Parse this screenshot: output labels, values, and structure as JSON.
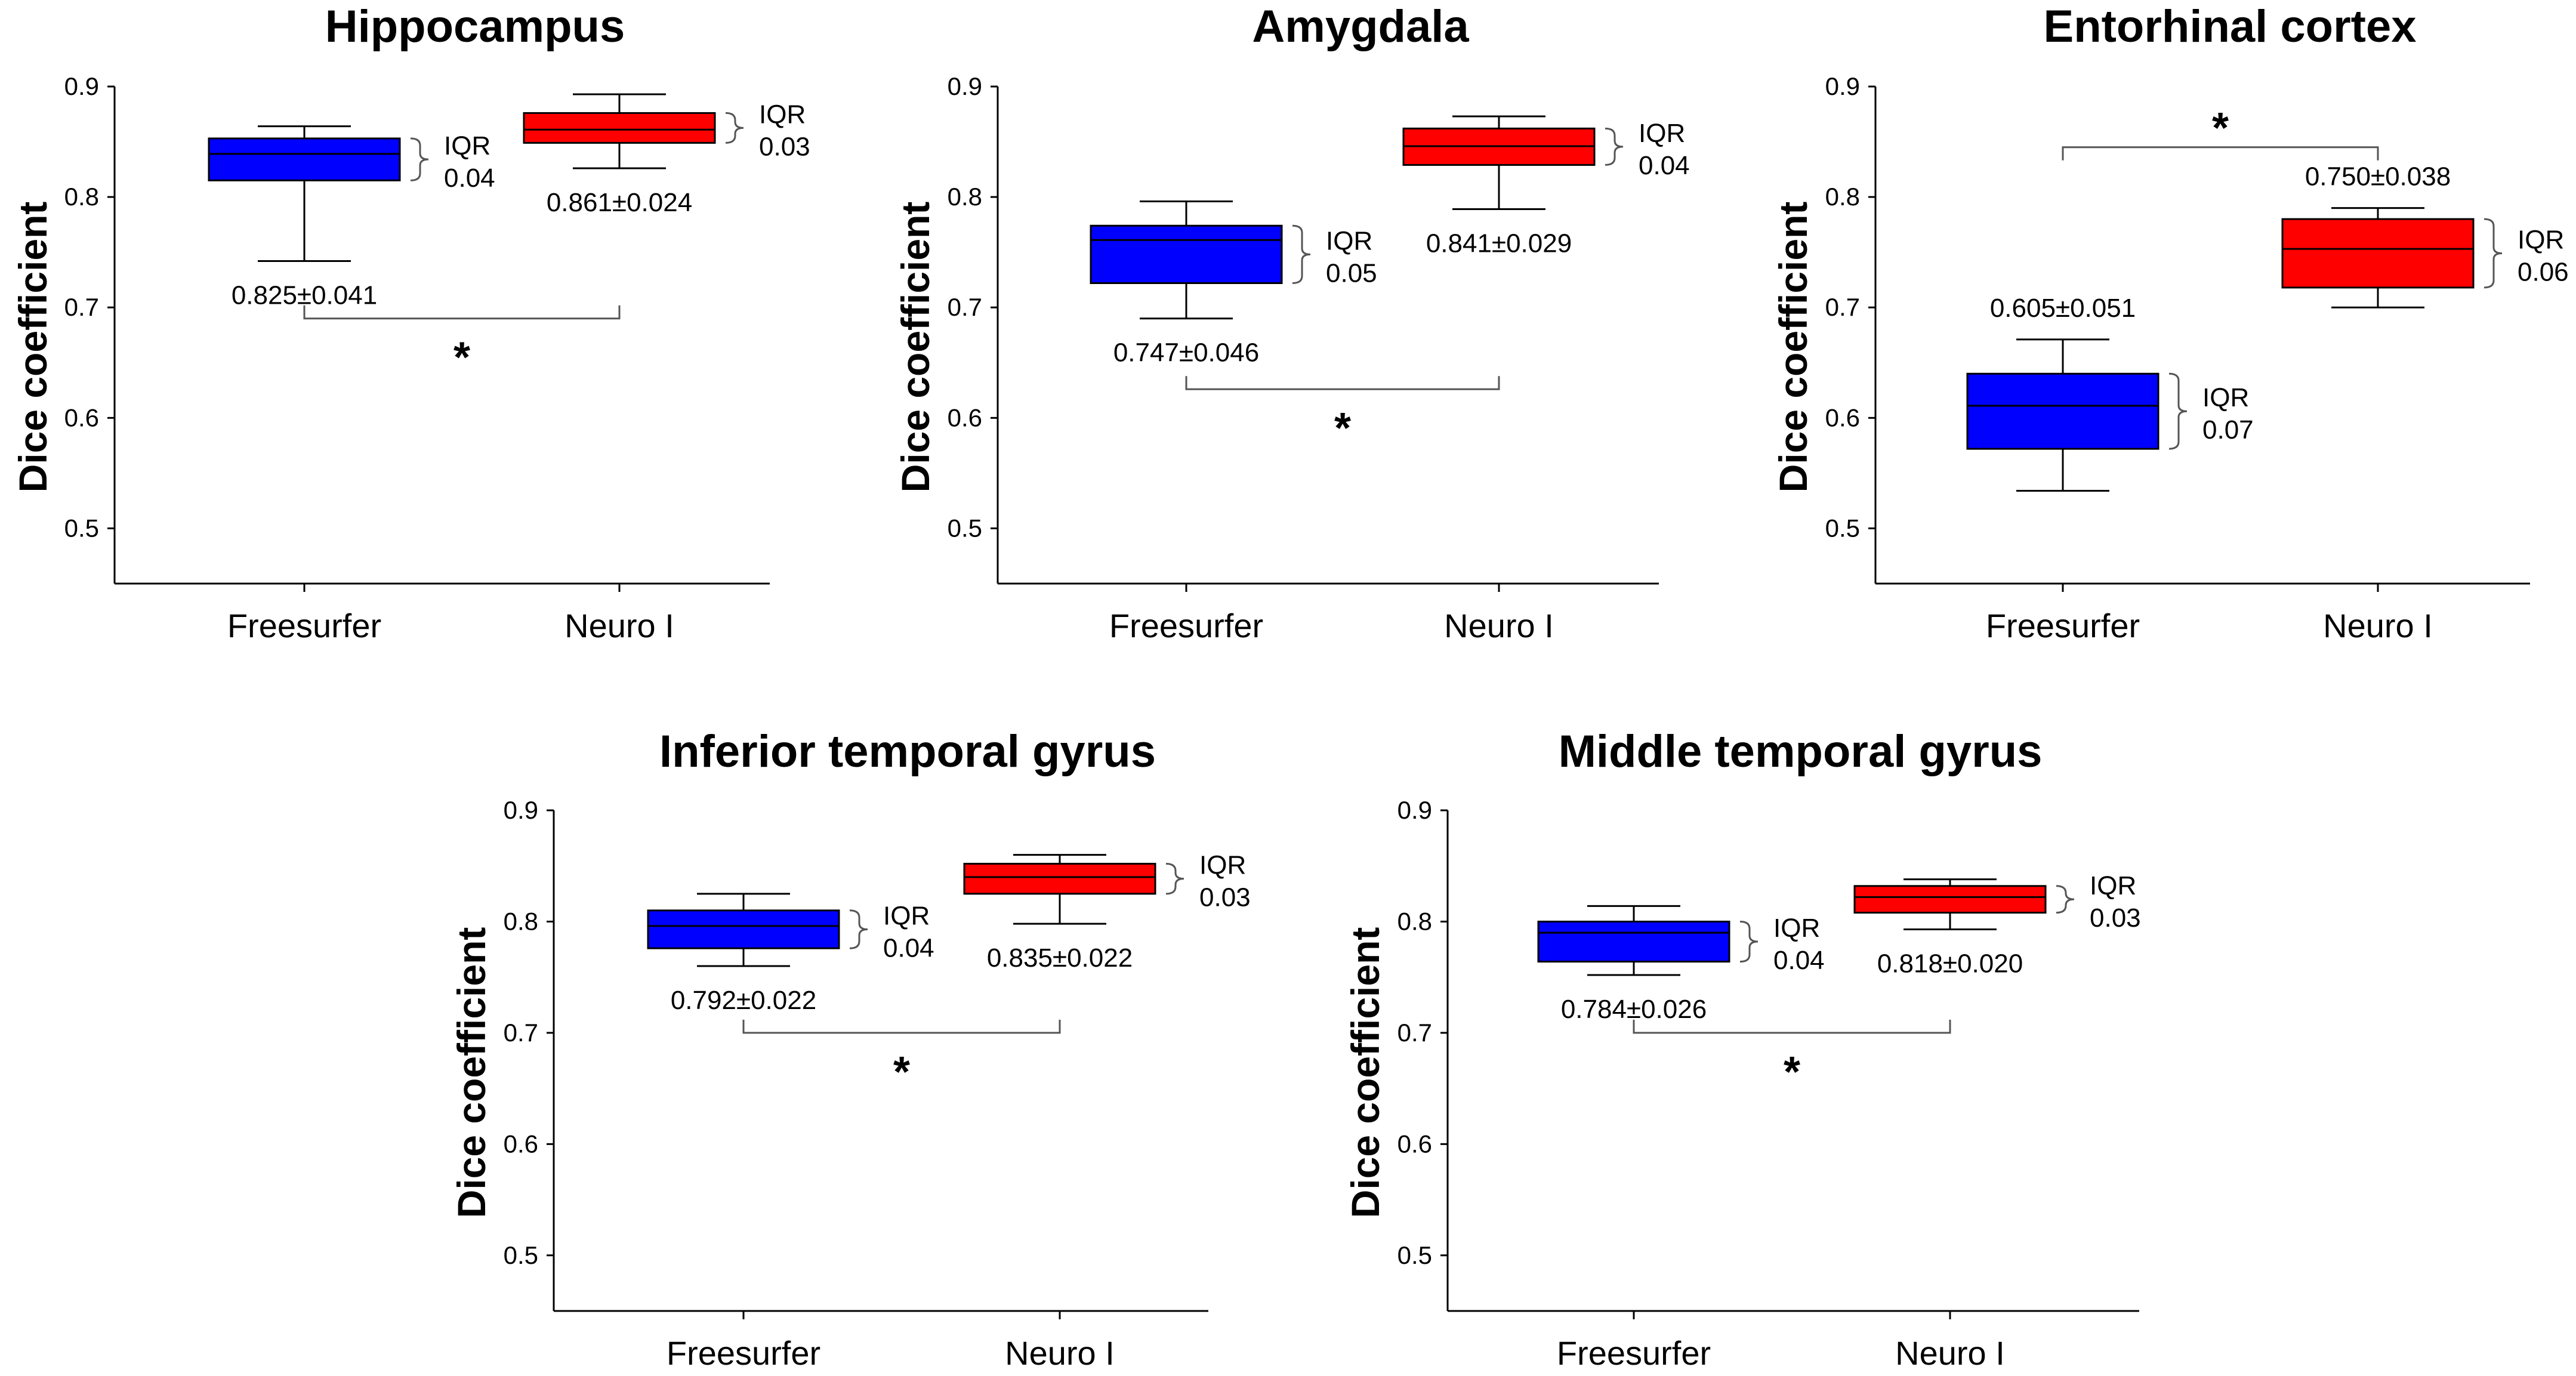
{
  "figure": {
    "ylabel": "Dice coefficient",
    "categories": [
      "Freesurfer",
      "Neuro I"
    ],
    "colors": {
      "Freesurfer": "#0000ff",
      "Neuro I": "#ff0000"
    },
    "significance_symbol": "*"
  },
  "chart_data": [
    {
      "type": "box",
      "title": "Hippocampus",
      "ylabel": "Dice coefficient",
      "categories": [
        "Freesurfer",
        "Neuro I"
      ],
      "ylim": [
        0.45,
        0.9
      ],
      "yticks": [
        0.5,
        0.6,
        0.7,
        0.8,
        0.9
      ],
      "ytick_labels": [
        "0.5",
        "0.6",
        "0.7",
        "0.8",
        "0.9"
      ],
      "series": [
        {
          "name": "Freesurfer",
          "whisker_low": 0.742,
          "q1": 0.815,
          "median": 0.839,
          "q3": 0.853,
          "whisker_high": 0.864,
          "mean_sd": "0.825±0.041",
          "iqr_label": "IQR",
          "iqr_value": "0.04"
        },
        {
          "name": "Neuro I",
          "whisker_low": 0.826,
          "q1": 0.849,
          "median": 0.861,
          "q3": 0.876,
          "whisker_high": 0.893,
          "mean_sd": "0.861±0.024",
          "iqr_label": "IQR",
          "iqr_value": "0.03"
        }
      ],
      "significance": {
        "symbol": "*",
        "bracket_y": 0.69,
        "position": "below"
      }
    },
    {
      "type": "box",
      "title": "Amygdala",
      "ylabel": "Dice coefficient",
      "categories": [
        "Freesurfer",
        "Neuro I"
      ],
      "ylim": [
        0.45,
        0.9
      ],
      "yticks": [
        0.5,
        0.6,
        0.7,
        0.8,
        0.9
      ],
      "ytick_labels": [
        "0.5",
        "0.6",
        "0.7",
        "0.8",
        "0.9"
      ],
      "series": [
        {
          "name": "Freesurfer",
          "whisker_low": 0.69,
          "q1": 0.722,
          "median": 0.761,
          "q3": 0.774,
          "whisker_high": 0.796,
          "mean_sd": "0.747±0.046",
          "iqr_label": "IQR",
          "iqr_value": "0.05"
        },
        {
          "name": "Neuro I",
          "whisker_low": 0.789,
          "q1": 0.829,
          "median": 0.846,
          "q3": 0.862,
          "whisker_high": 0.873,
          "mean_sd": "0.841±0.029",
          "iqr_label": "IQR",
          "iqr_value": "0.04"
        }
      ],
      "significance": {
        "symbol": "*",
        "bracket_y": 0.626,
        "position": "below"
      }
    },
    {
      "type": "box",
      "title": "Entorhinal cortex",
      "ylabel": "Dice coefficient",
      "categories": [
        "Freesurfer",
        "Neuro I"
      ],
      "ylim": [
        0.45,
        0.9
      ],
      "yticks": [
        0.5,
        0.6,
        0.7,
        0.8,
        0.9
      ],
      "ytick_labels": [
        "0.5",
        "0.6",
        "0.7",
        "0.8",
        "0.9"
      ],
      "series": [
        {
          "name": "Freesurfer",
          "whisker_low": 0.534,
          "q1": 0.572,
          "median": 0.611,
          "q3": 0.64,
          "whisker_high": 0.671,
          "mean_sd": "0.605±0.051",
          "iqr_label": "IQR",
          "iqr_value": "0.07"
        },
        {
          "name": "Neuro I",
          "whisker_low": 0.7,
          "q1": 0.718,
          "median": 0.753,
          "q3": 0.78,
          "whisker_high": 0.79,
          "mean_sd": "0.750±0.038",
          "iqr_label": "IQR",
          "iqr_value": "0.06"
        }
      ],
      "significance": {
        "symbol": "*",
        "bracket_y": 0.845,
        "position": "above"
      }
    },
    {
      "type": "box",
      "title": "Inferior temporal gyrus",
      "ylabel": "Dice coefficient",
      "categories": [
        "Freesurfer",
        "Neuro I"
      ],
      "ylim": [
        0.45,
        0.9
      ],
      "yticks": [
        0.5,
        0.6,
        0.7,
        0.8,
        0.9
      ],
      "ytick_labels": [
        "0.5",
        "0.6",
        "0.7",
        "0.8",
        "0.9"
      ],
      "series": [
        {
          "name": "Freesurfer",
          "whisker_low": 0.76,
          "q1": 0.776,
          "median": 0.796,
          "q3": 0.81,
          "whisker_high": 0.825,
          "mean_sd": "0.792±0.022",
          "iqr_label": "IQR",
          "iqr_value": "0.04"
        },
        {
          "name": "Neuro I",
          "whisker_low": 0.798,
          "q1": 0.825,
          "median": 0.84,
          "q3": 0.852,
          "whisker_high": 0.86,
          "mean_sd": "0.835±0.022",
          "iqr_label": "IQR",
          "iqr_value": "0.03"
        }
      ],
      "significance": {
        "symbol": "*",
        "bracket_y": 0.7,
        "position": "below"
      }
    },
    {
      "type": "box",
      "title": "Middle temporal gyrus",
      "ylabel": "Dice coefficient",
      "categories": [
        "Freesurfer",
        "Neuro I"
      ],
      "ylim": [
        0.45,
        0.9
      ],
      "yticks": [
        0.5,
        0.6,
        0.7,
        0.8,
        0.9
      ],
      "ytick_labels": [
        "0.5",
        "0.6",
        "0.7",
        "0.8",
        "0.9"
      ],
      "series": [
        {
          "name": "Freesurfer",
          "whisker_low": 0.752,
          "q1": 0.764,
          "median": 0.79,
          "q3": 0.8,
          "whisker_high": 0.814,
          "mean_sd": "0.784±0.026",
          "iqr_label": "IQR",
          "iqr_value": "0.04"
        },
        {
          "name": "Neuro I",
          "whisker_low": 0.793,
          "q1": 0.808,
          "median": 0.822,
          "q3": 0.832,
          "whisker_high": 0.838,
          "mean_sd": "0.818±0.020",
          "iqr_label": "IQR",
          "iqr_value": "0.03"
        }
      ],
      "significance": {
        "symbol": "*",
        "bracket_y": 0.7,
        "position": "below"
      }
    }
  ]
}
